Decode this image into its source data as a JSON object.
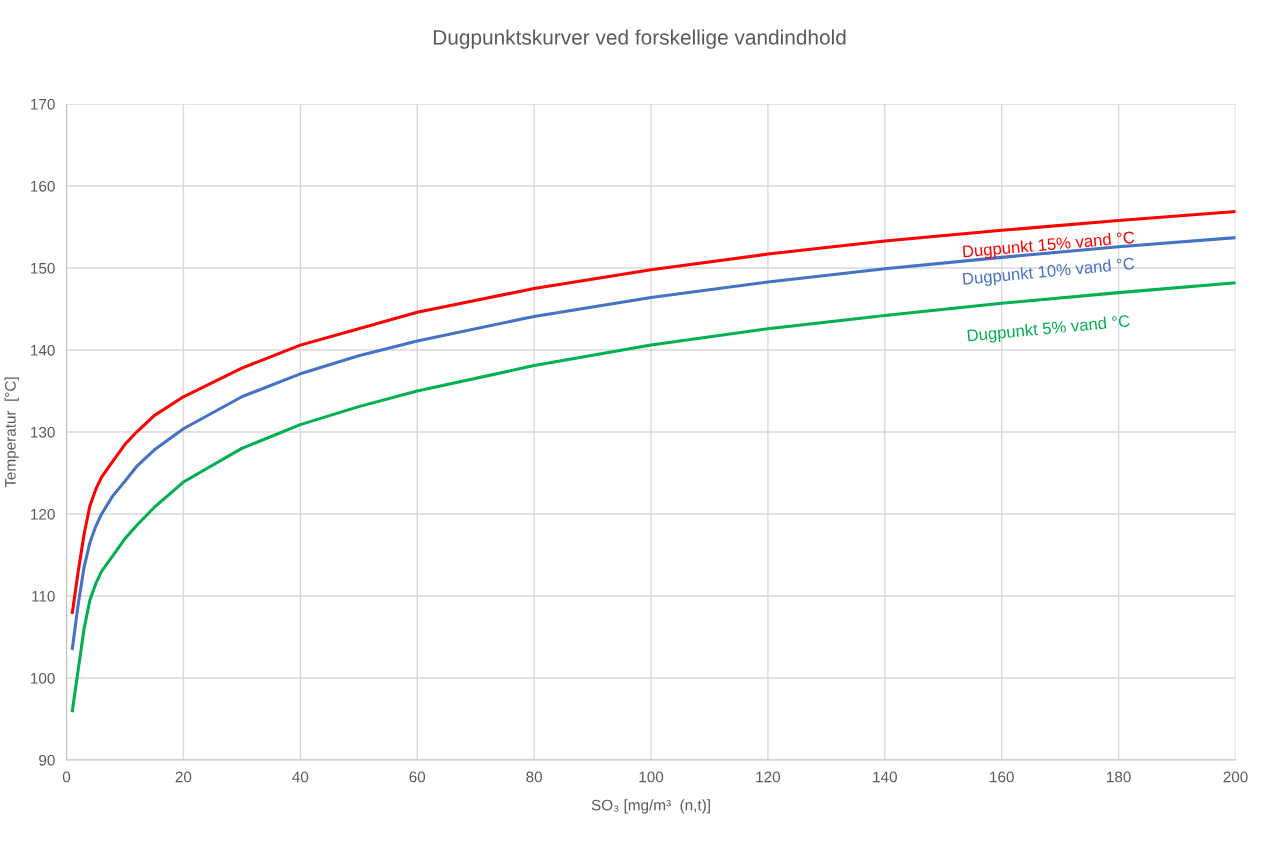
{
  "chart_data": {
    "type": "line",
    "title": "Dugpunktskurver ved forskellige vandindhold",
    "xlabel": "SO₃ [mg/m³  (n,t)]",
    "ylabel": "Temperatur  [°C]",
    "x": [
      1,
      2,
      3,
      4,
      5,
      6,
      8,
      10,
      12,
      15,
      20,
      30,
      40,
      50,
      60,
      80,
      100,
      120,
      140,
      160,
      180,
      200
    ],
    "series": [
      {
        "name": "Dugpunkt 15% vand °C",
        "color": "#ff0000",
        "values": [
          108,
          113,
          117.5,
          121,
          123,
          124.5,
          126.5,
          128.5,
          130,
          132,
          134.3,
          137.8,
          140.6,
          142.6,
          144.6,
          147.5,
          149.8,
          151.7,
          153.3,
          154.6,
          155.8,
          156.9
        ]
      },
      {
        "name": "Dugpunkt 10% vand °C",
        "color": "#4472c4",
        "values": [
          103.6,
          109,
          113.5,
          116.5,
          118.5,
          120,
          122.3,
          124,
          125.8,
          127.8,
          130.4,
          134.3,
          137.1,
          139.3,
          141.1,
          144.1,
          146.4,
          148.3,
          149.9,
          151.3,
          152.6,
          153.7
        ]
      },
      {
        "name": "Dugpunkt 5% vand °C",
        "color": "#00b050",
        "values": [
          96,
          101,
          106,
          109.5,
          111.5,
          113,
          115,
          117,
          118.6,
          120.8,
          123.9,
          128,
          130.9,
          133.1,
          135,
          138.1,
          140.6,
          142.6,
          144.2,
          145.7,
          147,
          148.2
        ]
      }
    ],
    "xlim": [
      0,
      200
    ],
    "xticks": [
      0,
      20,
      40,
      60,
      80,
      100,
      120,
      140,
      160,
      180,
      200
    ],
    "ylim": [
      90,
      170
    ],
    "yticks": [
      90,
      100,
      110,
      120,
      130,
      140,
      150,
      160,
      170
    ],
    "grid": true,
    "legend": false,
    "marker": "none",
    "line_style": "solid"
  }
}
